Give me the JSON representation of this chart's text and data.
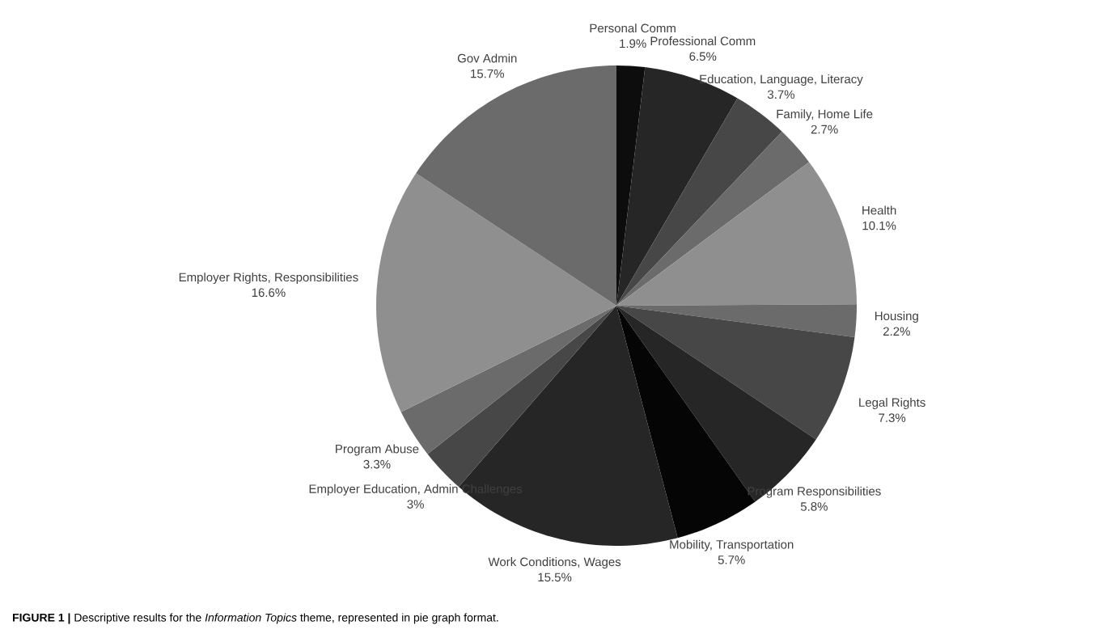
{
  "chart_data": {
    "type": "pie",
    "categories": [
      "Personal Comm",
      "Professional Comm",
      "Education, Language, Literacy",
      "Family, Home Life",
      "Health",
      "Housing",
      "Legal Rights",
      "Program Responsibilities",
      "Mobility, Transportation",
      "Work Conditions, Wages",
      "Employer Education, Admin Challenges",
      "Program Abuse",
      "Employer Rights, Responsibilities",
      "Gov Admin"
    ],
    "values": [
      1.9,
      6.5,
      3.7,
      2.7,
      10.1,
      2.2,
      7.3,
      5.8,
      5.7,
      15.5,
      3,
      3.3,
      16.6,
      15.7
    ],
    "value_labels": [
      "1.9%",
      "6.5%",
      "3.7%",
      "2.7%",
      "10.1%",
      "2.2%",
      "7.3%",
      "5.8%",
      "5.7%",
      "15.5%",
      "3%",
      "3.3%",
      "16.6%",
      "15.7%"
    ],
    "colors": [
      "#0d0d0d",
      "#262626",
      "#474747",
      "#6b6b6b",
      "#8f8f8f",
      "#6b6b6b",
      "#474747",
      "#262626",
      "#050505",
      "#262626",
      "#474747",
      "#6b6b6b",
      "#8f8f8f",
      "#6b6b6b"
    ],
    "legend": false,
    "annotations": [
      "**FIGURE 1 |** Descriptive results for the *Information Topics* theme, represented in pie graph format."
    ]
  }
}
